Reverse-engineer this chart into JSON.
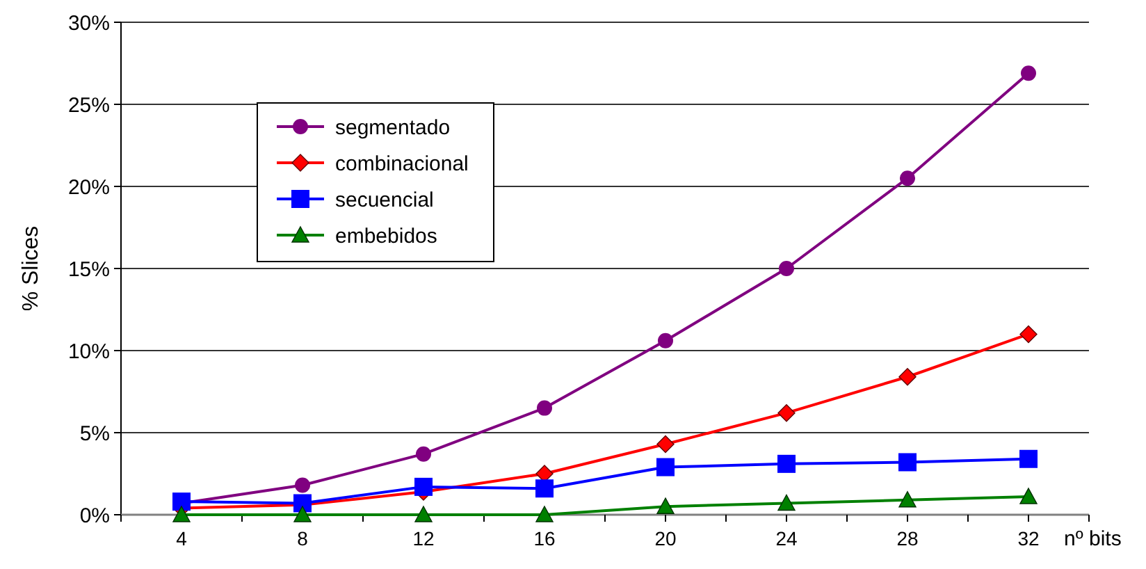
{
  "chart_data": {
    "type": "line",
    "ylabel": "% Slices",
    "xlabel": "nº bits",
    "x": [
      4,
      8,
      12,
      16,
      20,
      24,
      28,
      32
    ],
    "xlim": [
      2,
      34
    ],
    "xticks": [
      {
        "value": 2,
        "label": null
      },
      4,
      {
        "value": 6,
        "label": null
      },
      8,
      {
        "value": 10,
        "label": null
      },
      12,
      {
        "value": 14,
        "label": null
      },
      16,
      {
        "value": 18,
        "label": null
      },
      20,
      {
        "value": 22,
        "label": null
      },
      24,
      {
        "value": 26,
        "label": null
      },
      28,
      {
        "value": 30,
        "label": null
      },
      32,
      {
        "value": 34,
        "label": null
      }
    ],
    "ylim": [
      0,
      30
    ],
    "yticks": [
      {
        "value": 0,
        "label": "0%"
      },
      {
        "value": 5,
        "label": "5%"
      },
      {
        "value": 10,
        "label": "10%"
      },
      {
        "value": 15,
        "label": "15%"
      },
      {
        "value": 20,
        "label": "20%"
      },
      {
        "value": 25,
        "label": "25%"
      },
      {
        "value": 30,
        "label": "30%"
      }
    ],
    "grid": "y",
    "legend": "top left",
    "line_style": "solid",
    "series": [
      {
        "name": "segmentado",
        "color": "#800080",
        "marker": "circle",
        "values": [
          0.7,
          1.8,
          3.7,
          6.5,
          10.6,
          15.0,
          20.5,
          26.9
        ]
      },
      {
        "name": "combinacional",
        "color": "#ff0000",
        "marker": "diamond",
        "values": [
          0.4,
          0.6,
          1.4,
          2.5,
          4.3,
          6.2,
          8.4,
          11.0
        ]
      },
      {
        "name": "secuencial",
        "color": "#0000ff",
        "marker": "square",
        "values": [
          0.8,
          0.7,
          1.7,
          1.6,
          2.9,
          3.1,
          3.2,
          3.4
        ]
      },
      {
        "name": "embebidos",
        "color": "#008000",
        "marker": "triangle",
        "values": [
          0,
          0,
          0,
          0,
          0.5,
          0.7,
          0.9,
          1.1
        ]
      }
    ]
  }
}
